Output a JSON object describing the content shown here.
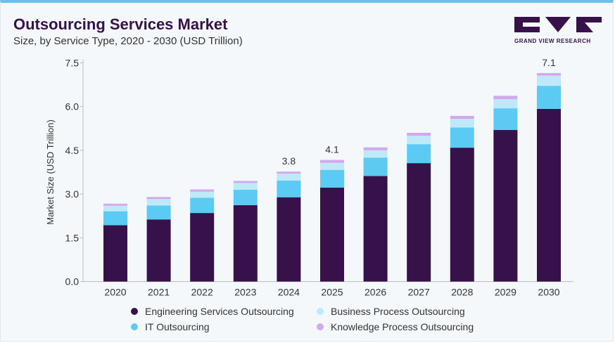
{
  "header": {
    "title": "Outsourcing Services Market",
    "subtitle": "Size, by Service Type, 2020 - 2030 (USD Trillion)",
    "logo_text": "GRAND VIEW RESEARCH"
  },
  "chart_data": {
    "type": "bar",
    "stacked": true,
    "title": "Outsourcing Services Market",
    "subtitle": "Size, by Service Type, 2020 - 2030 (USD Trillion)",
    "xlabel": "",
    "ylabel": "Market Size (USD Trillion)",
    "ylim": [
      0,
      7.5
    ],
    "yticks": [
      "0.0",
      "1.5",
      "3.0",
      "4.5",
      "6.0",
      "7.5"
    ],
    "categories": [
      "2020",
      "2021",
      "2022",
      "2023",
      "2024",
      "2025",
      "2026",
      "2027",
      "2028",
      "2029",
      "2030"
    ],
    "series": [
      {
        "name": "Engineering Services Outsourcing",
        "color": "#37114a",
        "values": [
          1.93,
          2.13,
          2.35,
          2.62,
          2.89,
          3.22,
          3.62,
          4.06,
          4.59,
          5.2,
          5.92
        ]
      },
      {
        "name": "IT Outsourcing",
        "color": "#5ccbf4",
        "values": [
          0.48,
          0.48,
          0.52,
          0.53,
          0.57,
          0.61,
          0.63,
          0.65,
          0.69,
          0.74,
          0.79
        ]
      },
      {
        "name": "Business Process Outsourcing",
        "color": "#bfe9f9",
        "values": [
          0.19,
          0.22,
          0.21,
          0.23,
          0.24,
          0.24,
          0.25,
          0.29,
          0.3,
          0.31,
          0.35
        ]
      },
      {
        "name": "Knowledge Process Outsourcing",
        "color": "#d4a8ec",
        "values": [
          0.07,
          0.07,
          0.08,
          0.07,
          0.07,
          0.1,
          0.1,
          0.1,
          0.1,
          0.12,
          0.09
        ]
      }
    ],
    "data_labels": {
      "2024": "3.8",
      "2025": "4.1",
      "2030": "7.1"
    },
    "grid": false,
    "legend_position": "bottom"
  }
}
